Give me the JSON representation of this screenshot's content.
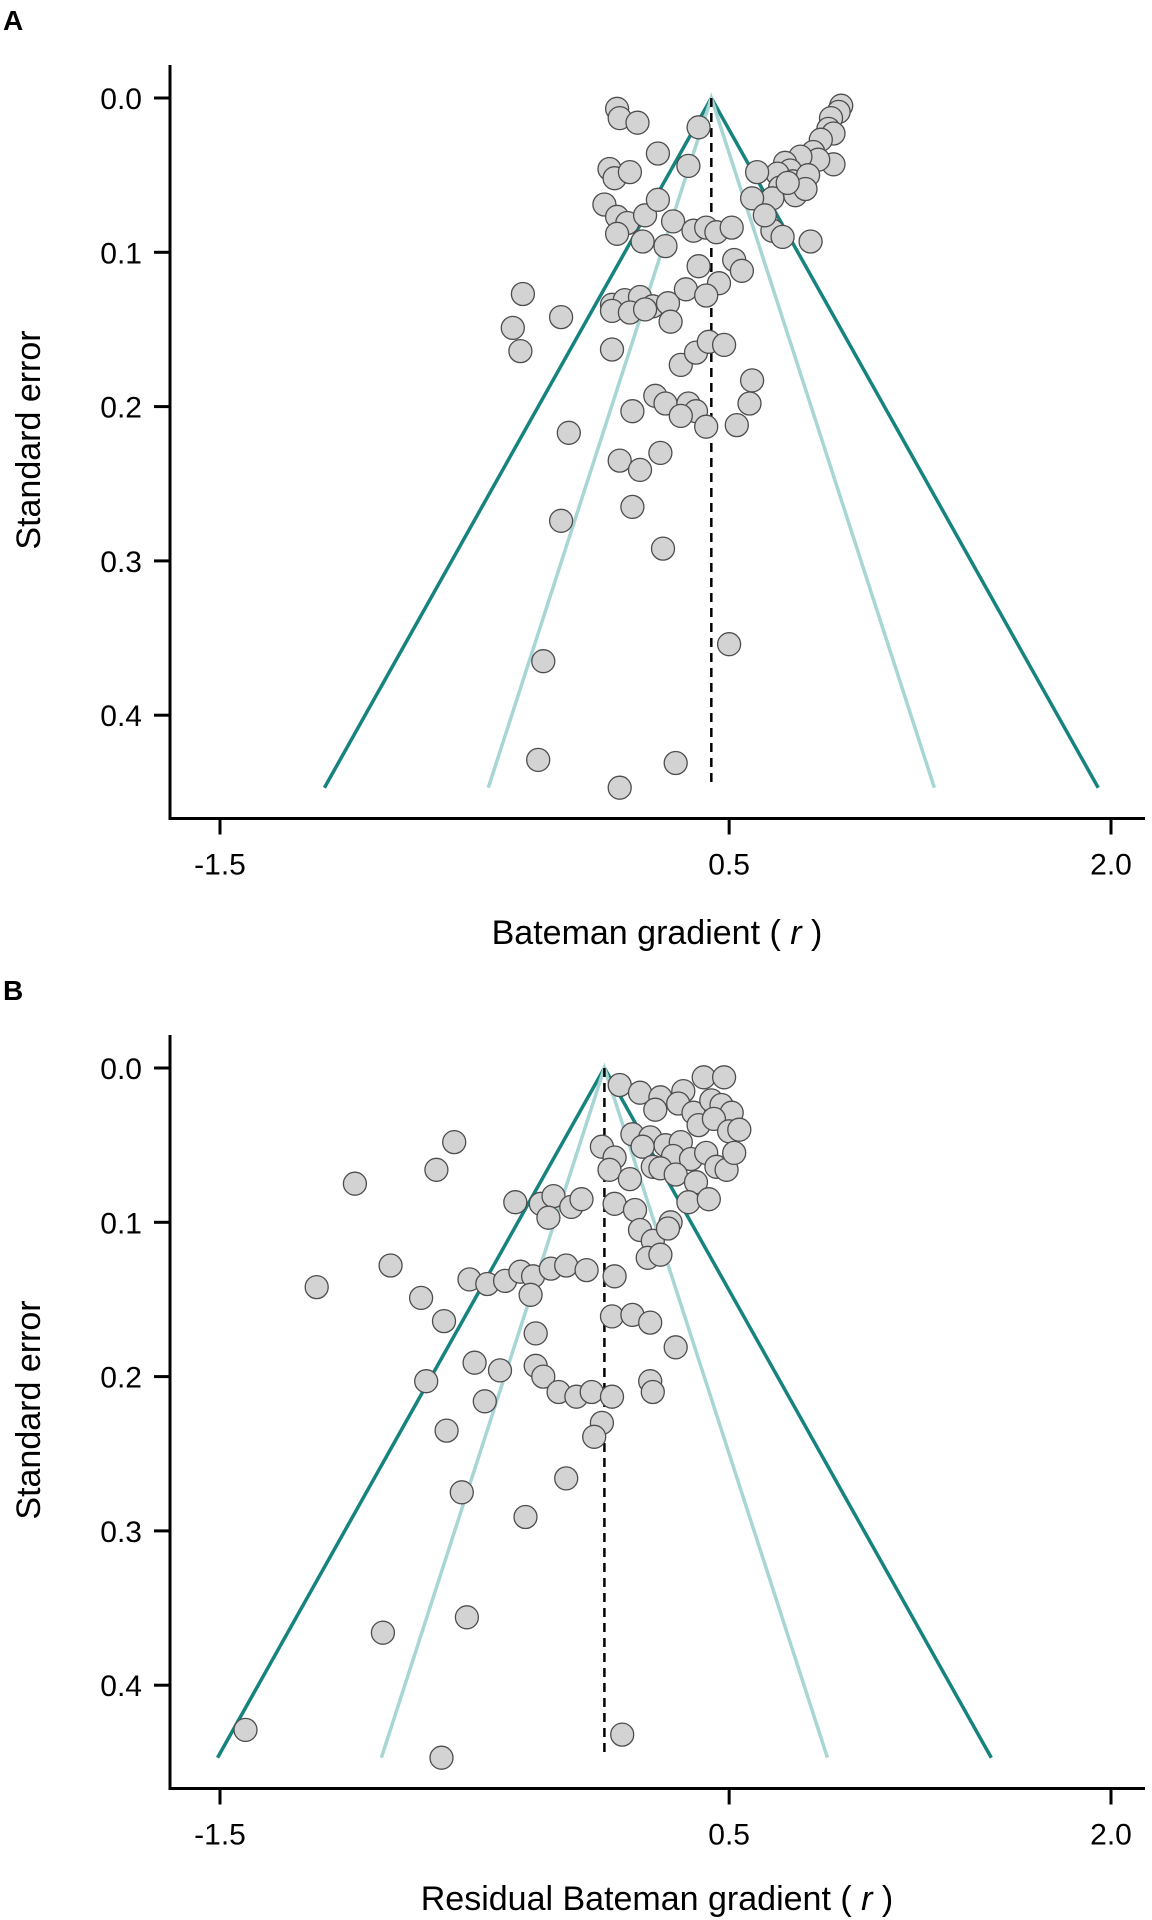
{
  "chart_data": [
    {
      "type": "scatter",
      "panel_label": "A",
      "title": "",
      "xlabel": "Bateman gradient",
      "xlabel_var": "r",
      "ylabel": "Standard error",
      "xlim": [
        -1.72,
        2.2
      ],
      "ylim": [
        0.0,
        0.47
      ],
      "y_reversed": true,
      "x_ticks": [
        {
          "value": -1.5,
          "label": "-1.5"
        },
        {
          "value": 0.5,
          "label": "0.5"
        },
        {
          "value": 2.0,
          "label": "2.0"
        }
      ],
      "y_ticks": [
        {
          "value": 0.0,
          "label": "0.0"
        },
        {
          "value": 0.1,
          "label": "0.1"
        },
        {
          "value": 0.2,
          "label": "0.2"
        },
        {
          "value": 0.3,
          "label": "0.3"
        },
        {
          "value": 0.4,
          "label": "0.4"
        }
      ],
      "grid": false,
      "funnel": {
        "center": 0.43,
        "se_max": 0.447,
        "outer_multiplier": 3.4,
        "inner_multiplier": 1.96
      },
      "colors": {
        "outer_funnel": "#16837f",
        "inner_funnel": "#a7d6d5",
        "points": "#d3d3d3"
      },
      "points": [
        [
          0.06,
          0.007
        ],
        [
          0.07,
          0.013
        ],
        [
          0.14,
          0.016
        ],
        [
          0.38,
          0.019
        ],
        [
          0.22,
          0.036
        ],
        [
          0.03,
          0.046
        ],
        [
          0.05,
          0.052
        ],
        [
          0.11,
          0.048
        ],
        [
          0.34,
          0.044
        ],
        [
          0.01,
          0.069
        ],
        [
          0.06,
          0.077
        ],
        [
          0.1,
          0.081
        ],
        [
          0.17,
          0.076
        ],
        [
          0.22,
          0.066
        ],
        [
          0.28,
          0.08
        ],
        [
          0.06,
          0.088
        ],
        [
          0.16,
          0.093
        ],
        [
          0.36,
          0.086
        ],
        [
          0.41,
          0.084
        ],
        [
          0.45,
          0.087
        ],
        [
          0.51,
          0.084
        ],
        [
          0.67,
          0.086
        ],
        [
          0.71,
          0.09
        ],
        [
          0.82,
          0.093
        ],
        [
          0.25,
          0.096
        ],
        [
          0.38,
          0.109
        ],
        [
          0.46,
          0.12
        ],
        [
          0.52,
          0.105
        ],
        [
          0.55,
          0.112
        ],
        [
          -0.31,
          0.127
        ],
        [
          -0.16,
          0.142
        ],
        [
          0.04,
          0.134
        ],
        [
          0.09,
          0.131
        ],
        [
          0.15,
          0.129
        ],
        [
          0.2,
          0.135
        ],
        [
          0.26,
          0.133
        ],
        [
          0.33,
          0.124
        ],
        [
          0.41,
          0.128
        ],
        [
          -0.35,
          0.149
        ],
        [
          -0.32,
          0.164
        ],
        [
          0.04,
          0.138
        ],
        [
          0.11,
          0.139
        ],
        [
          0.17,
          0.137
        ],
        [
          0.27,
          0.145
        ],
        [
          0.04,
          0.163
        ],
        [
          0.31,
          0.173
        ],
        [
          0.37,
          0.165
        ],
        [
          0.42,
          0.158
        ],
        [
          0.48,
          0.16
        ],
        [
          0.12,
          0.203
        ],
        [
          0.21,
          0.193
        ],
        [
          0.25,
          0.198
        ],
        [
          0.34,
          0.198
        ],
        [
          0.37,
          0.203
        ],
        [
          0.31,
          0.206
        ],
        [
          0.41,
          0.213
        ],
        [
          0.53,
          0.212
        ],
        [
          0.58,
          0.198
        ],
        [
          0.59,
          0.183
        ],
        [
          -0.13,
          0.217
        ],
        [
          0.07,
          0.235
        ],
        [
          0.15,
          0.241
        ],
        [
          0.23,
          0.23
        ],
        [
          -0.16,
          0.274
        ],
        [
          0.12,
          0.265
        ],
        [
          0.24,
          0.292
        ],
        [
          -0.23,
          0.365
        ],
        [
          0.5,
          0.354
        ],
        [
          -0.25,
          0.429
        ],
        [
          0.07,
          0.447
        ],
        [
          0.29,
          0.431
        ],
        [
          0.94,
          0.005
        ],
        [
          0.93,
          0.009
        ],
        [
          0.9,
          0.013
        ],
        [
          0.89,
          0.02
        ],
        [
          0.91,
          0.023
        ],
        [
          0.86,
          0.027
        ],
        [
          0.83,
          0.035
        ],
        [
          0.91,
          0.043
        ],
        [
          0.85,
          0.04
        ],
        [
          0.78,
          0.038
        ],
        [
          0.72,
          0.042
        ],
        [
          0.74,
          0.047
        ],
        [
          0.69,
          0.049
        ],
        [
          0.75,
          0.054
        ],
        [
          0.81,
          0.05
        ],
        [
          0.7,
          0.058
        ],
        [
          0.76,
          0.063
        ],
        [
          0.8,
          0.059
        ],
        [
          0.67,
          0.065
        ],
        [
          0.59,
          0.065
        ],
        [
          0.64,
          0.076
        ],
        [
          0.73,
          0.055
        ],
        [
          0.61,
          0.048
        ]
      ]
    },
    {
      "type": "scatter",
      "panel_label": "B",
      "title": "",
      "xlabel": "Residual Bateman gradient",
      "xlabel_var": "r",
      "ylabel": "Standard error",
      "xlim": [
        -1.72,
        2.2
      ],
      "ylim": [
        0.0,
        0.47
      ],
      "y_reversed": true,
      "x_ticks": [
        {
          "value": -1.5,
          "label": "-1.5"
        },
        {
          "value": 0.5,
          "label": "0.5"
        },
        {
          "value": 2.0,
          "label": "2.0"
        }
      ],
      "y_ticks": [
        {
          "value": 0.0,
          "label": "0.0"
        },
        {
          "value": 0.1,
          "label": "0.1"
        },
        {
          "value": 0.2,
          "label": "0.2"
        },
        {
          "value": 0.3,
          "label": "0.3"
        },
        {
          "value": 0.4,
          "label": "0.4"
        }
      ],
      "grid": false,
      "funnel": {
        "center": 0.01,
        "se_max": 0.447,
        "outer_multiplier": 3.4,
        "inner_multiplier": 1.96
      },
      "colors": {
        "outer_funnel": "#16837f",
        "inner_funnel": "#a7d6d5",
        "points": "#d3d3d3"
      },
      "points": [
        [
          0.07,
          0.011
        ],
        [
          0.15,
          0.016
        ],
        [
          0.23,
          0.019
        ],
        [
          0.32,
          0.015
        ],
        [
          0.4,
          0.006
        ],
        [
          0.48,
          0.006
        ],
        [
          0.21,
          0.027
        ],
        [
          0.3,
          0.023
        ],
        [
          0.36,
          0.029
        ],
        [
          0.43,
          0.021
        ],
        [
          0.47,
          0.024
        ],
        [
          0.51,
          0.029
        ],
        [
          0.12,
          0.043
        ],
        [
          0.19,
          0.045
        ],
        [
          0.25,
          0.05
        ],
        [
          0.31,
          0.048
        ],
        [
          0.38,
          0.037
        ],
        [
          0.44,
          0.033
        ],
        [
          0.5,
          0.041
        ],
        [
          0.54,
          0.04
        ],
        [
          0.0,
          0.051
        ],
        [
          0.05,
          0.058
        ],
        [
          0.16,
          0.051
        ],
        [
          0.2,
          0.064
        ],
        [
          0.28,
          0.057
        ],
        [
          0.35,
          0.059
        ],
        [
          0.41,
          0.055
        ],
        [
          0.45,
          0.064
        ],
        [
          0.49,
          0.066
        ],
        [
          0.52,
          0.055
        ],
        [
          0.03,
          0.066
        ],
        [
          0.11,
          0.072
        ],
        [
          0.23,
          0.065
        ],
        [
          0.29,
          0.069
        ],
        [
          0.37,
          0.074
        ],
        [
          -0.58,
          0.048
        ],
        [
          -0.65,
          0.066
        ],
        [
          -0.97,
          0.075
        ],
        [
          -0.34,
          0.087
        ],
        [
          -0.24,
          0.088
        ],
        [
          -0.19,
          0.083
        ],
        [
          -0.12,
          0.09
        ],
        [
          -0.08,
          0.085
        ],
        [
          0.05,
          0.088
        ],
        [
          -0.21,
          0.097
        ],
        [
          0.13,
          0.092
        ],
        [
          0.27,
          0.1
        ],
        [
          0.34,
          0.087
        ],
        [
          0.42,
          0.085
        ],
        [
          0.15,
          0.105
        ],
        [
          0.2,
          0.112
        ],
        [
          0.26,
          0.104
        ],
        [
          0.18,
          0.123
        ],
        [
          0.23,
          0.121
        ],
        [
          -1.12,
          0.142
        ],
        [
          -0.83,
          0.128
        ],
        [
          -0.71,
          0.149
        ],
        [
          -0.52,
          0.137
        ],
        [
          -0.45,
          0.14
        ],
        [
          -0.38,
          0.138
        ],
        [
          -0.32,
          0.132
        ],
        [
          -0.27,
          0.135
        ],
        [
          -0.2,
          0.13
        ],
        [
          -0.14,
          0.128
        ],
        [
          -0.06,
          0.131
        ],
        [
          -0.62,
          0.164
        ],
        [
          -0.28,
          0.147
        ],
        [
          0.05,
          0.135
        ],
        [
          -0.26,
          0.172
        ],
        [
          0.04,
          0.161
        ],
        [
          0.12,
          0.16
        ],
        [
          0.19,
          0.165
        ],
        [
          0.29,
          0.181
        ],
        [
          -0.69,
          0.203
        ],
        [
          -0.5,
          0.191
        ],
        [
          -0.4,
          0.196
        ],
        [
          -0.26,
          0.193
        ],
        [
          -0.23,
          0.2
        ],
        [
          -0.17,
          0.21
        ],
        [
          -0.1,
          0.213
        ],
        [
          -0.04,
          0.21
        ],
        [
          0.04,
          0.213
        ],
        [
          0.19,
          0.203
        ],
        [
          0.2,
          0.21
        ],
        [
          -0.46,
          0.216
        ],
        [
          -0.61,
          0.235
        ],
        [
          0.0,
          0.23
        ],
        [
          -0.03,
          0.239
        ],
        [
          -0.55,
          0.275
        ],
        [
          -0.14,
          0.266
        ],
        [
          -0.3,
          0.291
        ],
        [
          -0.86,
          0.366
        ],
        [
          -0.53,
          0.356
        ],
        [
          -1.4,
          0.429
        ],
        [
          -0.63,
          0.447
        ],
        [
          0.08,
          0.432
        ]
      ]
    }
  ]
}
